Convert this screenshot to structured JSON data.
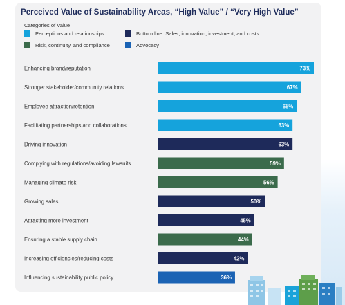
{
  "title": "Perceived Value of Sustainability Areas, “High Value” / “Very High Value”",
  "legend": {
    "title": "Categories of Value",
    "items": [
      {
        "label": "Perceptions and relationships",
        "color": "#15a3dc"
      },
      {
        "label": "Bottom line: Sales, innovation, investment, and costs",
        "color": "#1e2a5a"
      },
      {
        "label": "Risk, continuity, and compliance",
        "color": "#3b6b4b"
      },
      {
        "label": "Advocacy",
        "color": "#1b63b4"
      }
    ]
  },
  "chart_data": {
    "type": "bar",
    "orientation": "horizontal",
    "title": "Perceived Value of Sustainability Areas, “High Value” / “Very High Value”",
    "xlim": [
      0,
      100
    ],
    "categories": [
      "Enhancing brand/reputation",
      "Stronger stakeholder/community relations",
      "Employee attraction/retention",
      "Facilitating partnerships and collaborations",
      "Driving innovation",
      "Complying with regulations/avoiding lawsuits",
      "Managing climate risk",
      "Growing sales",
      "Attracting more investment",
      "Ensuring a stable supply chain",
      "Increasing efficiencies/reducing costs",
      "Influencing sustainability public policy"
    ],
    "values": [
      73,
      67,
      65,
      63,
      63,
      59,
      56,
      50,
      45,
      44,
      42,
      36
    ],
    "value_labels": [
      "73%",
      "67%",
      "65%",
      "63%",
      "63%",
      "59%",
      "56%",
      "50%",
      "45%",
      "44%",
      "42%",
      "36%"
    ],
    "bar_categories": [
      "Perceptions and relationships",
      "Perceptions and relationships",
      "Perceptions and relationships",
      "Perceptions and relationships",
      "Bottom line: Sales, innovation, investment, and costs",
      "Risk, continuity, and compliance",
      "Risk, continuity, and compliance",
      "Bottom line: Sales, innovation, investment, and costs",
      "Bottom line: Sales, innovation, investment, and costs",
      "Risk, continuity, and compliance",
      "Bottom line: Sales, innovation, investment, and costs",
      "Advocacy"
    ],
    "colors": {
      "Perceptions and relationships": "#15a3dc",
      "Bottom line: Sales, innovation, investment, and costs": "#1e2a5a",
      "Risk, continuity, and compliance": "#3b6b4b",
      "Advocacy": "#1b63b4"
    },
    "grid": false,
    "legend_position": "top-left"
  }
}
